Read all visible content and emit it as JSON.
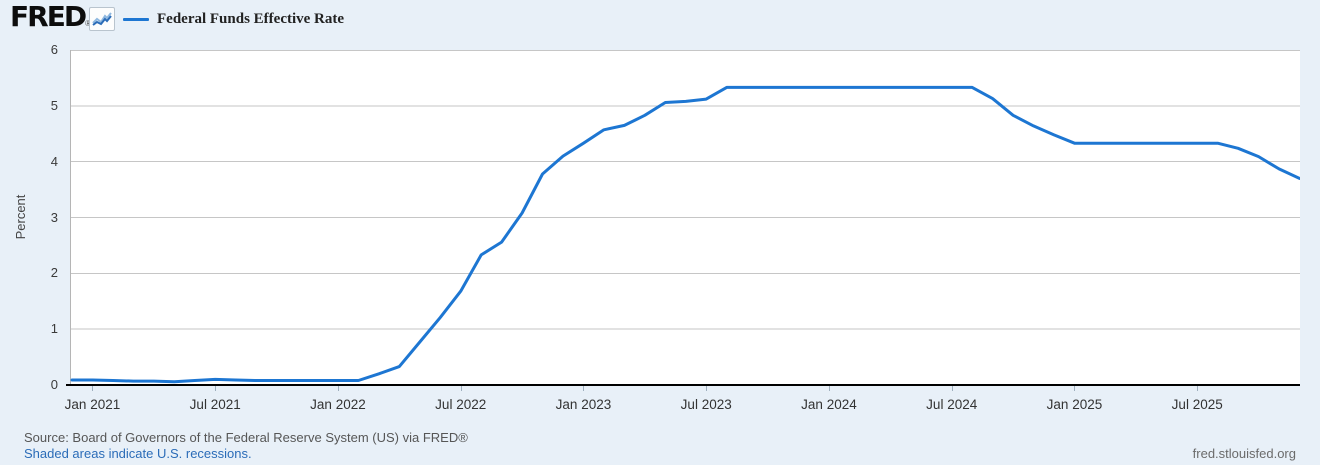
{
  "header": {
    "logo_text": "FRED",
    "logo_reg": "®",
    "legend_label": "Federal Funds Effective Rate"
  },
  "footer": {
    "source_line": "Source: Board of Governors of the Federal Reserve System (US) via FRED®",
    "recession_note": "Shaded areas indicate U.S. recessions.",
    "site_link": "fred.stlouisfed.org"
  },
  "colors": {
    "background": "#e8f0f8",
    "plot_background": "#ffffff",
    "line": "#1d76d2",
    "gridline": "#c6c6c6",
    "plot_border": "#b5b5b5",
    "axis": "#000000",
    "tick_mark": "#9fb0bf",
    "tick_text": "#3a3a3a",
    "link": "#2b6cb8",
    "source_text": "#565656"
  },
  "chart_data": {
    "type": "line",
    "title": "Federal Funds Effective Rate",
    "xlabel": "",
    "ylabel": "Percent",
    "ylim": [
      0,
      6
    ],
    "y_ticks": [
      0,
      1,
      2,
      3,
      4,
      5,
      6
    ],
    "grid": "horizontal-only",
    "legend_position": "top-left-header",
    "x_ticks": [
      {
        "label": "Jan 2021",
        "month_index": 1
      },
      {
        "label": "Jul 2021",
        "month_index": 7
      },
      {
        "label": "Jan 2022",
        "month_index": 13
      },
      {
        "label": "Jul 2022",
        "month_index": 19
      },
      {
        "label": "Jan 2023",
        "month_index": 25
      },
      {
        "label": "Jul 2023",
        "month_index": 31
      },
      {
        "label": "Jan 2024",
        "month_index": 37
      },
      {
        "label": "Jul 2024",
        "month_index": 43
      },
      {
        "label": "Jan 2025",
        "month_index": 49
      },
      {
        "label": "Jul 2025",
        "month_index": 55
      }
    ],
    "series": [
      {
        "name": "Federal Funds Effective Rate",
        "unit": "Percent",
        "months": [
          "2020-12",
          "2021-01",
          "2021-02",
          "2021-03",
          "2021-04",
          "2021-05",
          "2021-06",
          "2021-07",
          "2021-08",
          "2021-09",
          "2021-10",
          "2021-11",
          "2021-12",
          "2022-01",
          "2022-02",
          "2022-03",
          "2022-04",
          "2022-05",
          "2022-06",
          "2022-07",
          "2022-08",
          "2022-09",
          "2022-10",
          "2022-11",
          "2022-12",
          "2023-01",
          "2023-02",
          "2023-03",
          "2023-04",
          "2023-05",
          "2023-06",
          "2023-07",
          "2023-08",
          "2023-09",
          "2023-10",
          "2023-11",
          "2023-12",
          "2024-01",
          "2024-02",
          "2024-03",
          "2024-04",
          "2024-05",
          "2024-06",
          "2024-07",
          "2024-08",
          "2024-09",
          "2024-10",
          "2024-11",
          "2024-12",
          "2025-01",
          "2025-02",
          "2025-03",
          "2025-04",
          "2025-05",
          "2025-06",
          "2025-07",
          "2025-08",
          "2025-09",
          "2025-10",
          "2025-11",
          "2025-12"
        ],
        "values": [
          0.09,
          0.09,
          0.08,
          0.07,
          0.07,
          0.06,
          0.08,
          0.1,
          0.09,
          0.08,
          0.08,
          0.08,
          0.08,
          0.08,
          0.08,
          0.2,
          0.33,
          0.77,
          1.21,
          1.68,
          2.33,
          2.56,
          3.08,
          3.78,
          4.1,
          4.33,
          4.57,
          4.65,
          4.83,
          5.06,
          5.08,
          5.12,
          5.33,
          5.33,
          5.33,
          5.33,
          5.33,
          5.33,
          5.33,
          5.33,
          5.33,
          5.33,
          5.33,
          5.33,
          5.33,
          5.13,
          4.83,
          4.64,
          4.48,
          4.33,
          4.33,
          4.33,
          4.33,
          4.33,
          4.33,
          4.33,
          4.33,
          4.24,
          4.09,
          3.87,
          3.7
        ]
      }
    ]
  }
}
